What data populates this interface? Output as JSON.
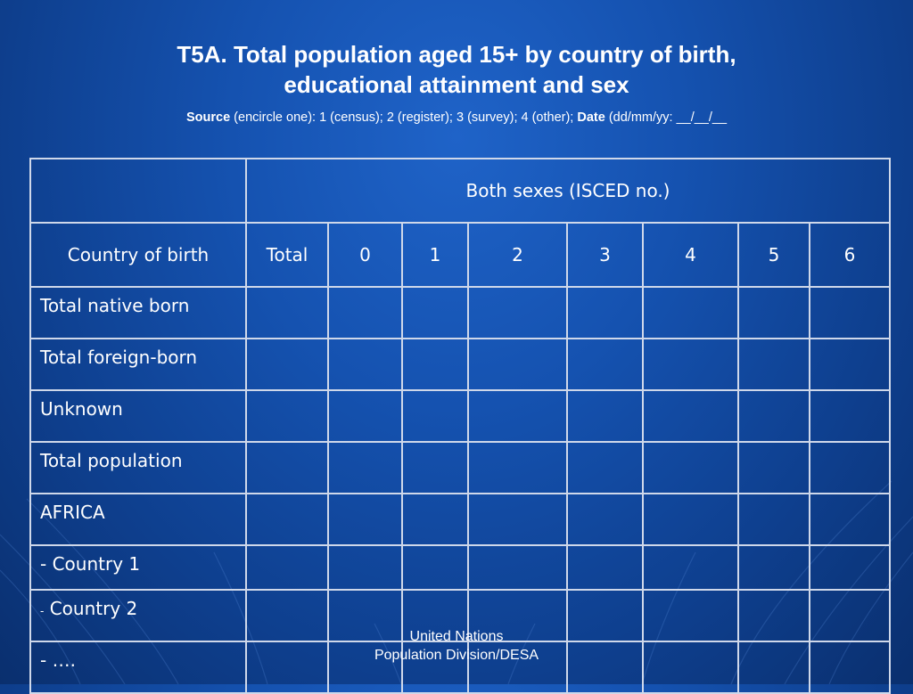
{
  "slide": {
    "title_line1": "T5A. Total population aged 15+  by country of birth,",
    "title_line2": "educational attainment and sex",
    "source_label": "Source",
    "source_text": " (encircle one): 1 (census); 2 (register); 3 (survey); 4 (other);  ",
    "date_label": "Date",
    "date_text": " (dd/mm/yy: __/__/__"
  },
  "table": {
    "group_header": "Both sexes (ISCED no.)",
    "row_header": "Country of birth",
    "columns": [
      "Total",
      "0",
      "1",
      "2",
      "3",
      "4",
      "5",
      "6"
    ],
    "rows": [
      {
        "dash": "",
        "label": "Total native born"
      },
      {
        "dash": "",
        "label": "Total foreign-born"
      },
      {
        "dash": "",
        "label": "Unknown"
      },
      {
        "dash": "",
        "label": "Total population"
      },
      {
        "dash": "",
        "label": "AFRICA"
      },
      {
        "dash": "",
        "label": "- Country 1"
      },
      {
        "dash": "-",
        "label": " Country 2"
      },
      {
        "dash": "",
        "label": "- …."
      }
    ]
  },
  "footer": {
    "line1": "United Nations",
    "line2": "Population Division/DESA"
  }
}
